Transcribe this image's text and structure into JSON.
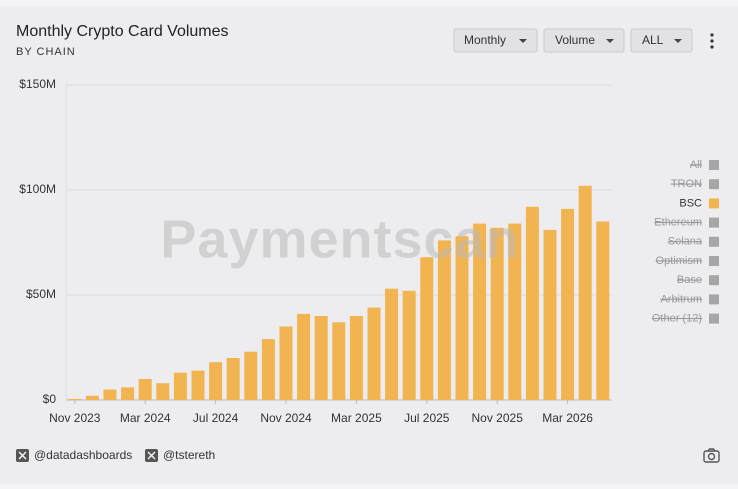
{
  "header": {
    "title": "Monthly Crypto Card Volumes",
    "subtitle": "BY CHAIN"
  },
  "controls": [
    "Monthly",
    "Volume",
    "ALL"
  ],
  "watermark": "Paymentscan",
  "footer": [
    "@datadashboards",
    "@tstereth"
  ],
  "chart_data": {
    "type": "bar",
    "categories": [
      "Nov 2023",
      null,
      null,
      null,
      "Mar 2024",
      null,
      null,
      null,
      "Jul 2024",
      null,
      null,
      null,
      "Nov 2024",
      null,
      null,
      null,
      "Mar 2025",
      null,
      null,
      null,
      "Jul 2025",
      null,
      null,
      null,
      "Nov 2025",
      null,
      null,
      null,
      "Mar 2026",
      null,
      null
    ],
    "series": [
      {
        "name": "BSC",
        "color": "#f2b451",
        "values": [
          500000,
          2000000,
          5000000,
          6000000,
          10000000,
          8000000,
          13000000,
          14000000,
          18000000,
          20000000,
          23000000,
          29000000,
          35000000,
          41000000,
          40000000,
          37000000,
          40000000,
          44000000,
          53000000,
          52000000,
          68000000,
          76000000,
          78000000,
          84000000,
          82000000,
          84000000,
          92000000,
          81000000,
          91000000,
          102000000,
          85000000
        ]
      }
    ],
    "ylim": [
      0,
      150000000
    ],
    "yticks": [
      {
        "value": 0,
        "label": "$0"
      },
      {
        "value": 50000000,
        "label": "$50M"
      },
      {
        "value": 100000000,
        "label": "$100M"
      },
      {
        "value": 150000000,
        "label": "$150M"
      }
    ],
    "grid": true,
    "legend": [
      {
        "name": "All",
        "color": "#a6a6a6",
        "hidden": true
      },
      {
        "name": "TRON",
        "color": "#a6a6a6",
        "hidden": true
      },
      {
        "name": "BSC",
        "color": "#f2b451",
        "hidden": false
      },
      {
        "name": "Ethereum",
        "color": "#a6a6a6",
        "hidden": true
      },
      {
        "name": "Solana",
        "color": "#a6a6a6",
        "hidden": true
      },
      {
        "name": "Optimism",
        "color": "#a6a6a6",
        "hidden": true
      },
      {
        "name": "Base",
        "color": "#a6a6a6",
        "hidden": true
      },
      {
        "name": "Arbitrum",
        "color": "#a6a6a6",
        "hidden": true
      },
      {
        "name": "Other (12)",
        "color": "#a6a6a6",
        "hidden": true
      }
    ]
  }
}
